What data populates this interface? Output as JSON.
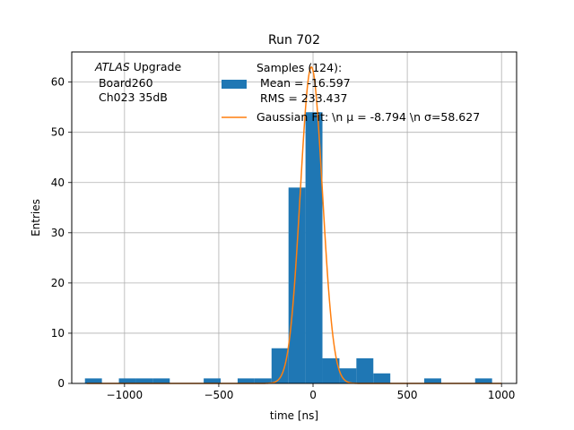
{
  "chart_data": {
    "type": "bar",
    "title": "Run 702",
    "xlabel": "time [ns]",
    "ylabel": "Entries",
    "xlim": [
      -1280,
      1080
    ],
    "ylim": [
      0,
      66
    ],
    "grid": true,
    "xticks": [
      -1000,
      -500,
      0,
      500,
      1000
    ],
    "xtick_labels": [
      "−1000",
      "−500",
      "0",
      "500",
      "1000"
    ],
    "yticks": [
      0,
      10,
      20,
      30,
      40,
      50,
      60
    ],
    "ytick_labels": [
      "0",
      "10",
      "20",
      "30",
      "40",
      "50",
      "60"
    ],
    "annotation": {
      "prefix": "ATLAS",
      "line1": " Upgrade",
      "line2": " Board260",
      "line3": " Ch023 35dB"
    },
    "bar_color": "#1f77b4",
    "line_color": "#ff7f0e",
    "bin_width": 90,
    "bins": [
      {
        "x": -1165,
        "value": 1
      },
      {
        "x": -985,
        "value": 1
      },
      {
        "x": -895,
        "value": 1
      },
      {
        "x": -805,
        "value": 1
      },
      {
        "x": -535,
        "value": 1
      },
      {
        "x": -355,
        "value": 1
      },
      {
        "x": -265,
        "value": 1
      },
      {
        "x": -175,
        "value": 7
      },
      {
        "x": -85,
        "value": 39
      },
      {
        "x": 5,
        "value": 54
      },
      {
        "x": 95,
        "value": 5
      },
      {
        "x": 185,
        "value": 3
      },
      {
        "x": 275,
        "value": 5
      },
      {
        "x": 365,
        "value": 2
      },
      {
        "x": 635,
        "value": 1
      },
      {
        "x": 905,
        "value": 1
      }
    ],
    "gaussian": {
      "amplitude": 63,
      "mu": -8.794,
      "sigma": 58.627,
      "x_range": [
        -1200,
        1000
      ]
    },
    "legend": {
      "placement": "top-right",
      "bar_entry": [
        "Samples (124):",
        " Mean = -16.597",
        " RMS = 233.437"
      ],
      "line_entry": "Gaussian Fit: \\n μ = -8.794 \\n σ=58.627"
    }
  }
}
